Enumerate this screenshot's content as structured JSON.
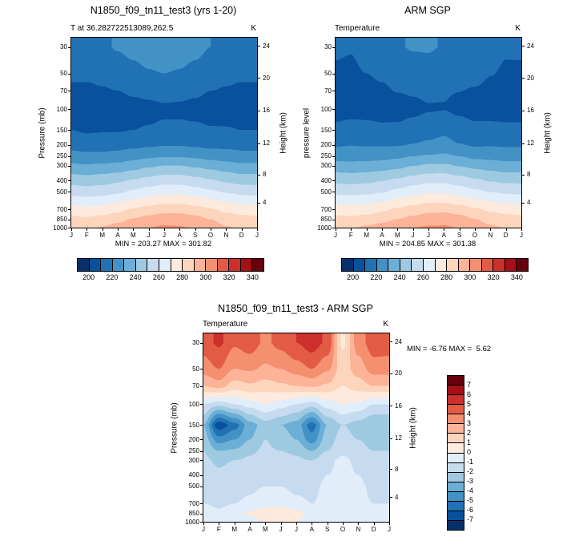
{
  "page": {
    "background": "#ffffff"
  },
  "chart_data": [
    {
      "type": "heatmap",
      "title": "N1850_f09_tn11_test3 (yrs 1-20)",
      "subtitle": "T at 36.282722513089,262.5",
      "units": "K",
      "ylabel_left": "Pressure (mb)",
      "ylabel_right": "Height (km)",
      "minmax": "MIN = 203.27 MAX = 301.82",
      "x_ticks": [
        "J",
        "F",
        "M",
        "A",
        "M",
        "J",
        "J",
        "A",
        "S",
        "O",
        "N",
        "D",
        "J"
      ],
      "pressure_levels": [
        30,
        50,
        70,
        100,
        150,
        200,
        250,
        300,
        400,
        500,
        700,
        850,
        1000
      ],
      "height_tick_labels": [
        24,
        20,
        16,
        12,
        8,
        4
      ],
      "height_tick_mb": [
        29.3,
        54.7,
        103,
        194,
        356,
        616
      ],
      "y_range_mb": [
        25,
        1000
      ],
      "y_scale": "log",
      "contour_levels": [
        200,
        210,
        220,
        230,
        240,
        250,
        260,
        270,
        280,
        290,
        300,
        310,
        320,
        330,
        340
      ],
      "colorbar_labels": [
        "200",
        "220",
        "240",
        "260",
        "280",
        "300",
        "320",
        "340"
      ],
      "colorbar_orientation": "horizontal",
      "palette": [
        "#08306b",
        "#08519c",
        "#2171b5",
        "#4292c6",
        "#6baed6",
        "#9ecae1",
        "#c6dbef",
        "#e1edf8",
        "#fdeadd",
        "#fdd5bd",
        "#fcb398",
        "#f48f70",
        "#e35b44",
        "#cb302b",
        "#a50f15",
        "#67000d"
      ],
      "values": [
        [
          216,
          216,
          218,
          221,
          223,
          225,
          226,
          225,
          223,
          220,
          218,
          216,
          216
        ],
        [
          212,
          212,
          213,
          215,
          217,
          219,
          220,
          219,
          217,
          215,
          213,
          212,
          212
        ],
        [
          208,
          208,
          209,
          210,
          212,
          213,
          214,
          213,
          212,
          210,
          209,
          208,
          208
        ],
        [
          204,
          203.3,
          204,
          205,
          206,
          207,
          208,
          208,
          207,
          206,
          205,
          204,
          204
        ],
        [
          210,
          208.5,
          209,
          209,
          210,
          211,
          212,
          212,
          212,
          211,
          211,
          210,
          210
        ],
        [
          216,
          215,
          215,
          216,
          217,
          218,
          219,
          219,
          218,
          217,
          217,
          216,
          216
        ],
        [
          224,
          223,
          223,
          224,
          226,
          228,
          229,
          229,
          228,
          226,
          225,
          224,
          224
        ],
        [
          232,
          231,
          232,
          233,
          235,
          238,
          240,
          240,
          238,
          236,
          234,
          232,
          232
        ],
        [
          246,
          245,
          246,
          248,
          251,
          254,
          256,
          256,
          254,
          251,
          248,
          246,
          246
        ],
        [
          256,
          255,
          256,
          258,
          262,
          265,
          267,
          267,
          265,
          262,
          259,
          257,
          256
        ],
        [
          274,
          273,
          274,
          277,
          281,
          284,
          286,
          286,
          284,
          281,
          277,
          275,
          274
        ],
        [
          283,
          282,
          284,
          287,
          291,
          294,
          296,
          296,
          294,
          290,
          286,
          284,
          283
        ],
        [
          289,
          288,
          291,
          294,
          297,
          300,
          301.8,
          301,
          299,
          295,
          291,
          289,
          289
        ]
      ]
    },
    {
      "type": "heatmap",
      "title": "ARM SGP",
      "subtitle": "Temperature",
      "units": "K",
      "ylabel_left": "pressure level",
      "ylabel_right": "Height (km)",
      "minmax": "MIN = 204.85 MAX = 301.38",
      "x_ticks": [
        "J",
        "F",
        "M",
        "A",
        "M",
        "J",
        "J",
        "A",
        "S",
        "O",
        "N",
        "D",
        "J"
      ],
      "pressure_levels": [
        30,
        50,
        70,
        100,
        150,
        200,
        250,
        300,
        400,
        500,
        700,
        850,
        1000
      ],
      "height_tick_labels": [
        24,
        20,
        16,
        12,
        8,
        4
      ],
      "height_tick_mb": [
        29.3,
        54.7,
        103,
        194,
        356,
        616
      ],
      "y_range_mb": [
        25,
        1000
      ],
      "y_scale": "log",
      "contour_levels": [
        200,
        210,
        220,
        230,
        240,
        250,
        260,
        270,
        280,
        290,
        300,
        310,
        320,
        330,
        340
      ],
      "colorbar_labels": [
        "200",
        "220",
        "240",
        "260",
        "280",
        "300",
        "320",
        "340"
      ],
      "colorbar_orientation": "horizontal",
      "palette": [
        "#08306b",
        "#08519c",
        "#2171b5",
        "#4292c6",
        "#6baed6",
        "#9ecae1",
        "#c6dbef",
        "#e1edf8",
        "#fdeadd",
        "#fdd5bd",
        "#fcb398",
        "#f48f70",
        "#e35b44",
        "#cb302b",
        "#a50f15",
        "#67000d"
      ],
      "values": [
        [
          211.5,
          210.8,
          214,
          216.5,
          219.2,
          220.8,
          221,
          219.4,
          218.2,
          219.2,
          214.5,
          211.4,
          211.5
        ],
        [
          208.5,
          208,
          210,
          211.8,
          214.2,
          216,
          216.5,
          215,
          213.8,
          213.5,
          210.5,
          208.5,
          208.5
        ],
        [
          206,
          205.5,
          207.5,
          208.2,
          210.5,
          211.2,
          212,
          210.8,
          210.2,
          209,
          207.5,
          206,
          206
        ],
        [
          205,
          204.9,
          205,
          205.5,
          206,
          207.5,
          209,
          209.5,
          207.5,
          206,
          205.2,
          205,
          205
        ],
        [
          213,
          215.3,
          214.5,
          212.5,
          212.5,
          214,
          215.5,
          217.5,
          215,
          213,
          213.5,
          213,
          213
        ],
        [
          218.5,
          219.5,
          219,
          219,
          219,
          220.5,
          222,
          223.5,
          220.5,
          218.5,
          219,
          218.5,
          218.5
        ],
        [
          226,
          226,
          225.8,
          226.2,
          227.8,
          230,
          231.2,
          232,
          230,
          227.2,
          226.5,
          226,
          226
        ],
        [
          233.8,
          233.2,
          234,
          234.8,
          236.5,
          239.6,
          241.8,
          242,
          239.2,
          236.8,
          235.2,
          233.8,
          233.8
        ],
        [
          247.5,
          246.8,
          247.6,
          249.5,
          252.2,
          255.2,
          257.5,
          257.5,
          255,
          251.8,
          249,
          247.5,
          247.5
        ],
        [
          257.2,
          256.5,
          257.4,
          259.2,
          263,
          266,
          268.2,
          268.2,
          265.8,
          262.6,
          259.8,
          258.2,
          257.2
        ],
        [
          275,
          274.2,
          275,
          277.8,
          281.5,
          284.5,
          286.8,
          287,
          284.8,
          281.5,
          277.8,
          276,
          275
        ],
        [
          283.5,
          282.8,
          284.5,
          286.8,
          290.2,
          293,
          295.5,
          296.5,
          294.5,
          290.3,
          286.5,
          284.5,
          283.5
        ],
        [
          289.8,
          289,
          291.8,
          294.5,
          297,
          299.8,
          301.4,
          301.4,
          299.8,
          295.5,
          291.8,
          289.8,
          289.8
        ]
      ]
    },
    {
      "type": "heatmap",
      "title": "N1850_f09_tn11_test3 - ARM SGP",
      "subtitle": "Temperature",
      "units": "K",
      "ylabel_left": "Pressure (mb)",
      "ylabel_right": "Height (km)",
      "minmax": "MIN = -6.76 MAX =  5.62",
      "x_ticks": [
        "J",
        "F",
        "M",
        "A",
        "M",
        "J",
        "J",
        "A",
        "S",
        "O",
        "N",
        "D",
        "J"
      ],
      "pressure_levels": [
        30,
        50,
        70,
        100,
        150,
        200,
        250,
        300,
        400,
        500,
        700,
        850,
        1000
      ],
      "height_tick_labels": [
        24,
        20,
        16,
        12,
        8,
        4
      ],
      "height_tick_mb": [
        29.3,
        54.7,
        103,
        194,
        356,
        616
      ],
      "y_range_mb": [
        25,
        1000
      ],
      "y_scale": "log",
      "contour_levels": [
        -7,
        -6,
        -5,
        -4,
        -3,
        -2,
        -1,
        0,
        1,
        2,
        3,
        4,
        5,
        6,
        7
      ],
      "colorbar_labels": [
        "7",
        "6",
        "5",
        "4",
        "3",
        "2",
        "1",
        "0",
        "-1",
        "-2",
        "-3",
        "-4",
        "-5",
        "-6",
        "-7"
      ],
      "colorbar_orientation": "vertical",
      "palette": [
        "#08306b",
        "#08519c",
        "#2171b5",
        "#4292c6",
        "#6baed6",
        "#9ecae1",
        "#c6dbef",
        "#e1edf8",
        "#fdeadd",
        "#fdd5bd",
        "#fcb398",
        "#f48f70",
        "#e35b44",
        "#cb302b",
        "#a50f15",
        "#67000d"
      ],
      "values": [
        [
          4.5,
          5.2,
          4.2,
          4.6,
          3.8,
          4.4,
          5.0,
          5.6,
          4.8,
          0.8,
          3.5,
          4.6,
          4.5
        ],
        [
          3.5,
          4.0,
          3.0,
          3.2,
          2.8,
          3.0,
          3.5,
          4.0,
          3.2,
          1.5,
          2.5,
          3.5,
          3.5
        ],
        [
          2.0,
          2.5,
          1.5,
          1.8,
          1.5,
          1.8,
          2.0,
          2.2,
          1.8,
          1.0,
          1.5,
          2.0,
          2.0
        ],
        [
          -1.0,
          -1.6,
          -1.0,
          -0.5,
          0.0,
          -0.5,
          -1.0,
          -1.5,
          -0.5,
          0.0,
          -0.2,
          -1.0,
          -1.0
        ],
        [
          -3.0,
          -6.8,
          -5.5,
          -3.5,
          -2.5,
          -3.0,
          -3.5,
          -5.5,
          -3.0,
          -2.0,
          -2.5,
          -3.0,
          -3.0
        ],
        [
          -2.5,
          -4.5,
          -4.0,
          -3.0,
          -2.0,
          -2.5,
          -3.0,
          -4.5,
          -2.5,
          -1.5,
          -2.0,
          -2.5,
          -2.5
        ],
        [
          -2.0,
          -3.0,
          -2.8,
          -2.2,
          -1.8,
          -2.0,
          -2.2,
          -3.0,
          -2.0,
          -1.2,
          -1.5,
          -2.0,
          -2.0
        ],
        [
          -1.8,
          -2.2,
          -2.0,
          -1.8,
          -1.5,
          -1.6,
          -1.8,
          -2.0,
          -1.2,
          -0.8,
          -1.2,
          -1.8,
          -1.8
        ],
        [
          -1.5,
          -1.8,
          -1.6,
          -1.5,
          -1.2,
          -1.2,
          -1.5,
          -1.5,
          -1.0,
          -0.8,
          -1.0,
          -1.5,
          -1.5
        ],
        [
          -1.2,
          -1.5,
          -1.4,
          -1.2,
          -1.0,
          -1.0,
          -1.2,
          -1.2,
          -0.8,
          -0.6,
          -0.8,
          -1.2,
          -1.2
        ],
        [
          -1.0,
          -1.2,
          -1.0,
          -0.8,
          -0.5,
          -0.5,
          -0.8,
          -1.0,
          -0.8,
          -0.5,
          -0.8,
          -1.0,
          -1.0
        ],
        [
          -0.5,
          -0.8,
          -0.5,
          0.2,
          0.8,
          1.0,
          0.5,
          -0.5,
          -0.5,
          -0.3,
          -0.5,
          -0.5,
          -0.5
        ],
        [
          -0.8,
          -1.0,
          -0.8,
          -0.5,
          0.0,
          0.2,
          0.0,
          -0.8,
          -0.8,
          -0.5,
          -0.8,
          -0.8,
          -0.8
        ]
      ]
    }
  ]
}
